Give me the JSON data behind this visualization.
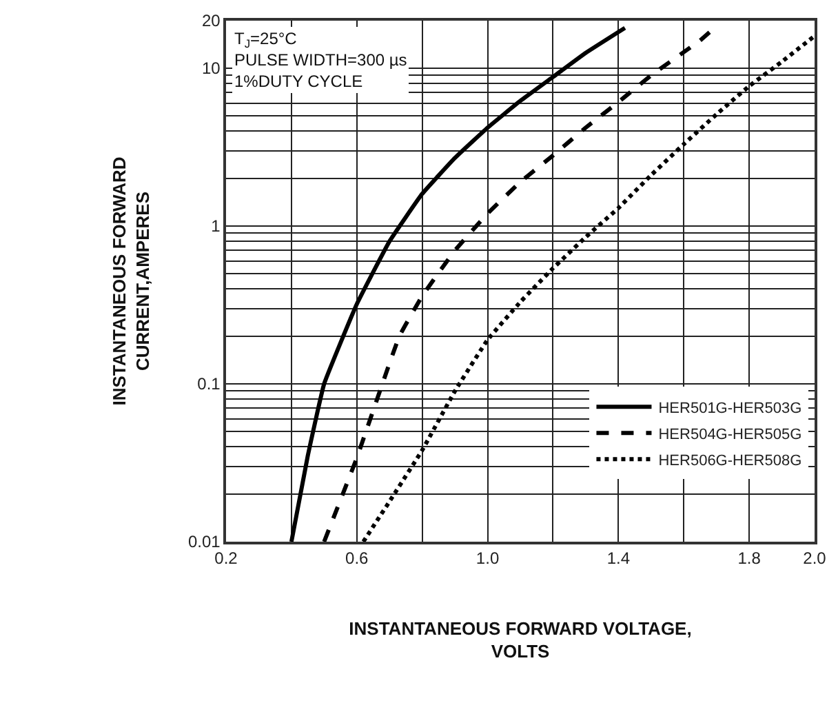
{
  "chart_data": {
    "type": "line",
    "xlabel": "INSTANTANEOUS FORWARD VOLTAGE,\nVOLTS",
    "ylabel": "INSTANTANEOUS FORWARD\nCURRENT,AMPERES",
    "annotations": [
      "T$_{J}$=25°C\nPULSE WIDTH=300 µs\n1%DUTY CYCLE"
    ],
    "series": [
      {
        "name": "HER501G-HER503G",
        "color": "#000000",
        "line_style": "solid",
        "x": [
          0.4,
          0.45,
          0.5,
          0.6,
          0.7,
          0.8,
          0.9,
          1.0,
          1.1,
          1.2,
          1.3,
          1.42
        ],
        "values": [
          0.01,
          0.035,
          0.1,
          0.32,
          0.8,
          1.6,
          2.7,
          4.2,
          6.2,
          8.8,
          12.5,
          18
        ]
      },
      {
        "name": "HER504G-HER505G",
        "color": "#000000",
        "line_style": "dashed",
        "x": [
          0.5,
          0.6,
          0.73,
          0.8,
          0.9,
          1.0,
          1.1,
          1.2,
          1.3,
          1.4,
          1.5,
          1.65,
          1.68
        ],
        "values": [
          0.01,
          0.034,
          0.2,
          0.36,
          0.7,
          1.2,
          1.9,
          2.8,
          4.2,
          6.1,
          9,
          15,
          17
        ]
      },
      {
        "name": "HER506G-HER508G",
        "color": "#000000",
        "line_style": "dotted",
        "x": [
          0.62,
          0.7,
          0.8,
          0.9,
          1.0,
          1.1,
          1.2,
          1.3,
          1.4,
          1.5,
          1.6,
          1.7,
          1.8,
          1.9,
          2.0
        ],
        "values": [
          0.01,
          0.018,
          0.038,
          0.09,
          0.19,
          0.33,
          0.54,
          0.85,
          1.3,
          2.1,
          3.3,
          5.1,
          7.7,
          11,
          16
        ]
      }
    ],
    "xlim": [
      0.2,
      2.0
    ],
    "xticks": [
      0.2,
      {
        "value": 0.4,
        "label": null
      },
      0.6,
      {
        "value": 0.8,
        "label": null
      },
      {
        "value": 1.0,
        "label": "1.0"
      },
      {
        "value": 1.2,
        "label": null
      },
      1.4,
      {
        "value": 1.6,
        "label": null
      },
      1.8,
      {
        "value": 2.0,
        "label": "2.0"
      }
    ],
    "ylim": [
      0.01,
      20
    ],
    "log": "y",
    "yticks": [
      0.01,
      {
        "value": 0.02,
        "label": null
      },
      {
        "value": 0.03,
        "label": null
      },
      {
        "value": 0.04,
        "label": null
      },
      {
        "value": 0.05,
        "label": null
      },
      {
        "value": 0.06,
        "label": null
      },
      {
        "value": 0.07,
        "label": null
      },
      {
        "value": 0.08,
        "label": null
      },
      {
        "value": 0.09,
        "label": null
      },
      0.1,
      {
        "value": 0.2,
        "label": null
      },
      {
        "value": 0.3,
        "label": null
      },
      {
        "value": 0.4,
        "label": null
      },
      {
        "value": 0.5,
        "label": null
      },
      {
        "value": 0.6,
        "label": null
      },
      {
        "value": 0.7,
        "label": null
      },
      {
        "value": 0.8,
        "label": null
      },
      {
        "value": 0.9,
        "label": null
      },
      1,
      {
        "value": 2,
        "label": null
      },
      {
        "value": 3,
        "label": null
      },
      {
        "value": 4,
        "label": null
      },
      {
        "value": 5,
        "label": null
      },
      {
        "value": 6,
        "label": null
      },
      {
        "value": 7,
        "label": null
      },
      {
        "value": 8,
        "label": null
      },
      {
        "value": 9,
        "label": null
      },
      10,
      20
    ],
    "grid": true,
    "legend": "bottom right",
    "marker": "none"
  }
}
